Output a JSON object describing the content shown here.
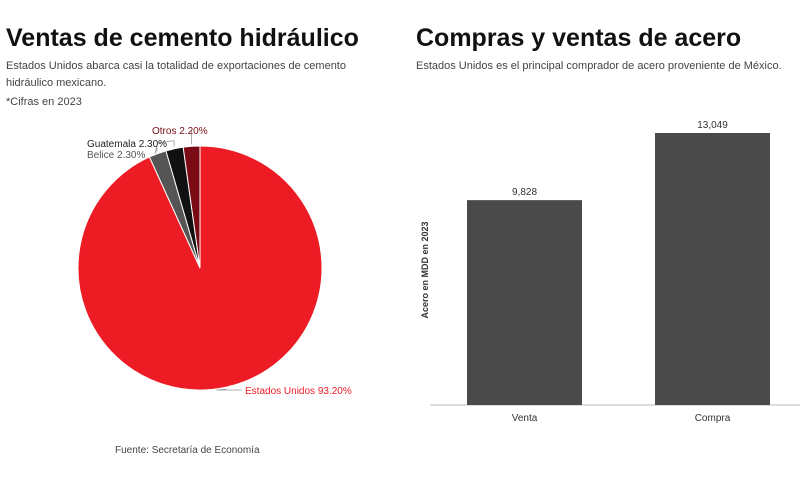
{
  "left": {
    "title": "Ventas de cemento hidráulico",
    "subtitle": "Estados Unidos abarca casi la totalidad de exportaciones de cemento hidráulico mexicano.",
    "note": "*Cifras en 2023",
    "source": "Fuente: Secretaría de Economía"
  },
  "right": {
    "title": "Compras y ventas de acero",
    "subtitle": "Estados Unidos es el principal comprador de acero proveniente de México."
  },
  "chart_data": [
    {
      "type": "pie",
      "slices": [
        {
          "label": "Estados Unidos 93.20%",
          "name": "Estados Unidos",
          "value": 93.2,
          "color": "#ed1c24"
        },
        {
          "label": "Belice 2.30%",
          "name": "Belice",
          "value": 2.3,
          "color": "#555555"
        },
        {
          "label": "Guatemala 2.30%",
          "name": "Guatemala",
          "value": 2.3,
          "color": "#111111"
        },
        {
          "label": "Otros 2.20%",
          "name": "Otros",
          "value": 2.2,
          "color": "#7a0a14"
        }
      ]
    },
    {
      "type": "bar",
      "categories": [
        "Venta",
        "Compra"
      ],
      "values": [
        9828,
        13049
      ],
      "value_labels": [
        "9,828",
        "13,049"
      ],
      "ylabel": "Acero en MDD en 2023",
      "color": "#4a4a4a",
      "grid": false
    }
  ]
}
